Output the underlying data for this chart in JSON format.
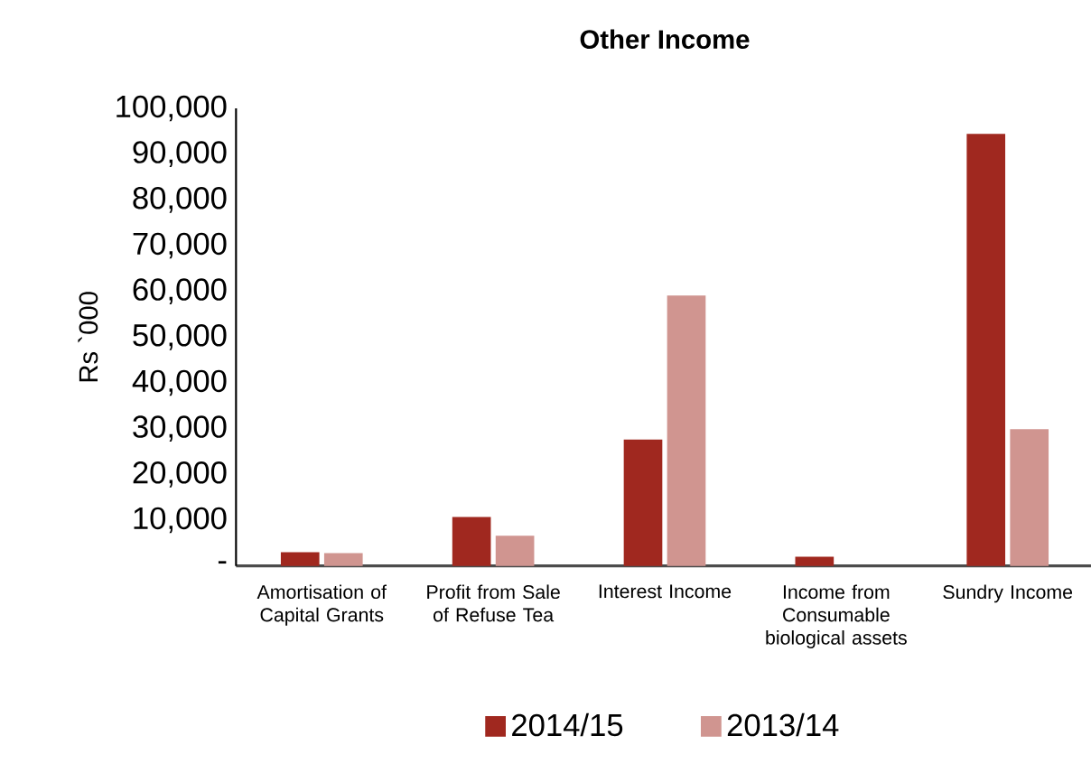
{
  "chart_data": {
    "type": "bar",
    "title": "Other Income",
    "ylabel": "Rs `000",
    "categories": [
      "Amortisation of Capital Grants",
      "Profit from Sale of Refuse Tea",
      "Interest Income",
      "Income from Consumable biological assets",
      "Sundry Income"
    ],
    "series": [
      {
        "name": "2014/15",
        "color": "#a0281f",
        "values": [
          3000,
          10700,
          27600,
          2000,
          94400
        ]
      },
      {
        "name": "2013/14",
        "color": "#d09590",
        "values": [
          2800,
          6600,
          59100,
          null,
          29900
        ]
      }
    ],
    "ylim": [
      0,
      100000
    ],
    "yticks": [
      {
        "value": 0,
        "label": "-"
      },
      {
        "value": 10000,
        "label": "10,000"
      },
      {
        "value": 20000,
        "label": "20,000"
      },
      {
        "value": 30000,
        "label": "30,000"
      },
      {
        "value": 40000,
        "label": "40,000"
      },
      {
        "value": 50000,
        "label": "50,000"
      },
      {
        "value": 60000,
        "label": "60,000"
      },
      {
        "value": 70000,
        "label": "70,000"
      },
      {
        "value": 80000,
        "label": "80,000"
      },
      {
        "value": 90000,
        "label": "90,000"
      },
      {
        "value": 100000,
        "label": "100,000"
      }
    ],
    "grid": false,
    "legend": "bottom"
  }
}
